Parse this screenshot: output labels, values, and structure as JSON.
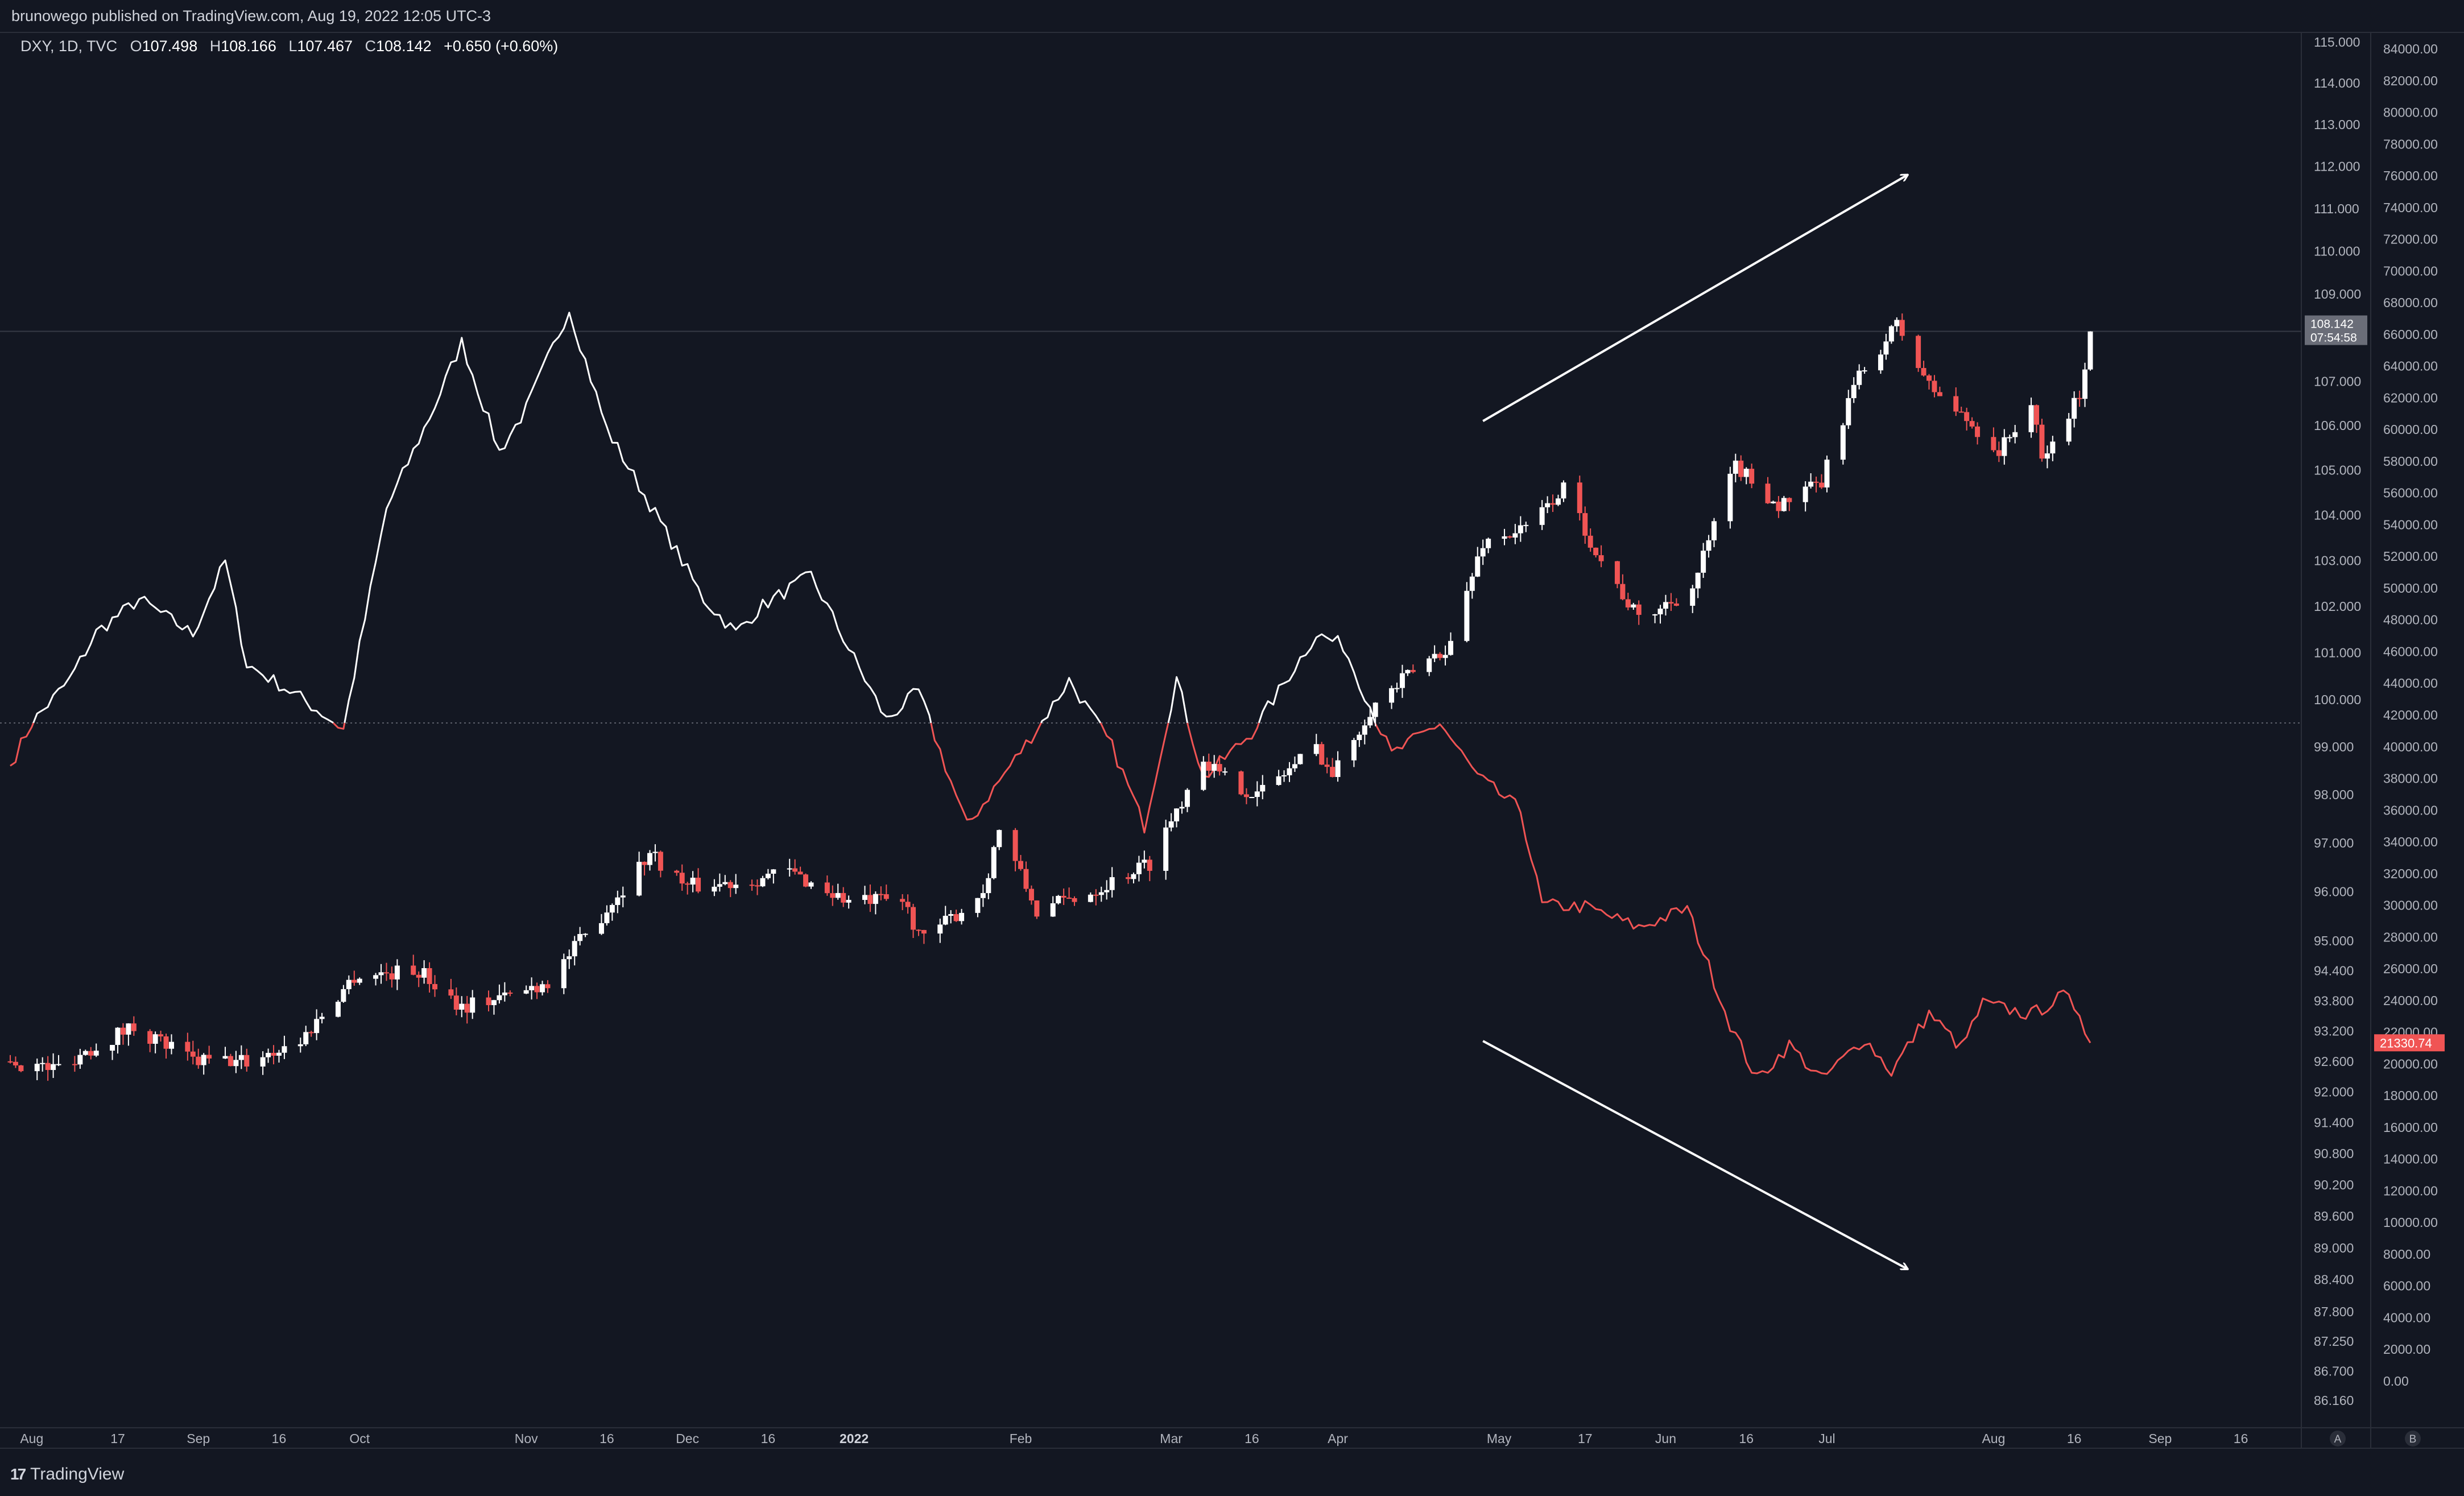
{
  "header": {
    "publish_text": "brunowego published on TradingView.com, Aug 19, 2022 12:05 UTC-3"
  },
  "legend": {
    "symbol": "DXY, 1D, TVC",
    "open_label": "O",
    "open": "107.498",
    "high_label": "H",
    "high": "108.166",
    "low_label": "L",
    "low": "107.467",
    "close_label": "C",
    "close": "108.142",
    "change": "+0.650 (+0.60%)"
  },
  "footer": {
    "brand": "TradingView"
  },
  "colors": {
    "background": "#131722",
    "up": "#ffffff",
    "down": "#f05454",
    "btc_above": "#ffffff",
    "btc_below": "#f05454",
    "grid": "#2a2e39",
    "axis_text": "#b2b5be"
  },
  "chart_data": {
    "type": "candlestick",
    "series_primary": "DXY, 1D, TVC",
    "last_price_label": "108.142",
    "countdown_label": "07:54:58",
    "btc_last_label": "21330.74",
    "x_tick_labels": [
      "Aug",
      "17",
      "Sep",
      "16",
      "Oct",
      "Nov",
      "16",
      "Dec",
      "16",
      "2022",
      "Feb",
      "Mar",
      "16",
      "Apr",
      "May",
      "17",
      "Jun",
      "16",
      "Jul",
      "Aug",
      "16",
      "Sep",
      "16"
    ],
    "x_tick_dates": [
      "2021-08-01",
      "2021-08-17",
      "2021-09-01",
      "2021-09-16",
      "2021-10-01",
      "2021-11-01",
      "2021-11-16",
      "2021-12-01",
      "2021-12-16",
      "2022-01-01",
      "2022-02-01",
      "2022-03-01",
      "2022-03-16",
      "2022-04-01",
      "2022-05-01",
      "2022-05-17",
      "2022-06-01",
      "2022-06-16",
      "2022-07-01",
      "2022-08-01",
      "2022-08-16",
      "2022-09-01",
      "2022-09-16"
    ],
    "left_axis_labels": [
      "115.000",
      "114.000",
      "113.000",
      "112.000",
      "111.000",
      "110.000",
      "109.000",
      "107.000",
      "106.000",
      "105.000",
      "104.000",
      "103.000",
      "102.000",
      "101.000",
      "100.000",
      "99.000",
      "98.000",
      "97.000",
      "96.000",
      "95.000",
      "94.400",
      "93.800",
      "93.200",
      "92.600",
      "92.000",
      "91.400",
      "90.800",
      "90.200",
      "89.600",
      "89.000",
      "88.400",
      "87.800",
      "87.250",
      "86.700",
      "86.160"
    ],
    "right_axis_labels": [
      "84000.00",
      "82000.00",
      "80000.00",
      "78000.00",
      "76000.00",
      "74000.00",
      "72000.00",
      "70000.00",
      "68000.00",
      "66000.00",
      "64000.00",
      "62000.00",
      "60000.00",
      "58000.00",
      "56000.00",
      "54000.00",
      "52000.00",
      "50000.00",
      "48000.00",
      "46000.00",
      "44000.00",
      "42000.00",
      "40000.00",
      "38000.00",
      "36000.00",
      "34000.00",
      "32000.00",
      "30000.00",
      "28000.00",
      "26000.00",
      "24000.00",
      "22000.00",
      "20000.00",
      "18000.00",
      "16000.00",
      "14000.00",
      "12000.00",
      "10000.00",
      "8000.00",
      "6000.00",
      "4000.00",
      "2000.00",
      "0.00"
    ],
    "axis_buttons": [
      "A",
      "B"
    ],
    "dxy_anchors": [
      [
        "2021-07-28",
        92.6
      ],
      [
        "2021-08-05",
        92.45
      ],
      [
        "2021-08-10",
        92.75
      ],
      [
        "2021-08-20",
        93.3
      ],
      [
        "2021-08-31",
        92.6
      ],
      [
        "2021-09-10",
        92.6
      ],
      [
        "2021-09-20",
        93.0
      ],
      [
        "2021-09-30",
        94.3
      ],
      [
        "2021-10-12",
        94.4
      ],
      [
        "2021-10-20",
        93.7
      ],
      [
        "2021-10-29",
        93.9
      ],
      [
        "2021-11-05",
        94.2
      ],
      [
        "2021-11-12",
        95.1
      ],
      [
        "2021-11-24",
        96.8
      ],
      [
        "2021-12-01",
        96.1
      ],
      [
        "2021-12-10",
        96.2
      ],
      [
        "2021-12-20",
        96.4
      ],
      [
        "2021-12-31",
        95.8
      ],
      [
        "2022-01-10",
        95.8
      ],
      [
        "2022-01-14",
        95.0
      ],
      [
        "2022-01-25",
        96.0
      ],
      [
        "2022-01-28",
        97.3
      ],
      [
        "2022-02-04",
        95.6
      ],
      [
        "2022-02-14",
        96.0
      ],
      [
        "2022-02-25",
        96.6
      ],
      [
        "2022-03-07",
        98.8
      ],
      [
        "2022-03-10",
        98.4
      ],
      [
        "2022-03-17",
        98.0
      ],
      [
        "2022-03-28",
        99.0
      ],
      [
        "2022-03-31",
        98.4
      ],
      [
        "2022-04-07",
        99.8
      ],
      [
        "2022-04-14",
        100.5
      ],
      [
        "2022-04-22",
        101.2
      ],
      [
        "2022-04-28",
        103.4
      ],
      [
        "2022-05-06",
        103.7
      ],
      [
        "2022-05-13",
        104.6
      ],
      [
        "2022-05-20",
        103.0
      ],
      [
        "2022-05-27",
        101.7
      ],
      [
        "2022-06-06",
        102.4
      ],
      [
        "2022-06-14",
        105.1
      ],
      [
        "2022-06-22",
        104.2
      ],
      [
        "2022-06-30",
        104.7
      ],
      [
        "2022-07-06",
        106.9
      ],
      [
        "2022-07-14",
        108.3
      ],
      [
        "2022-07-20",
        106.9
      ],
      [
        "2022-07-28",
        106.0
      ],
      [
        "2022-08-02",
        105.4
      ],
      [
        "2022-08-08",
        106.5
      ],
      [
        "2022-08-10",
        105.2
      ],
      [
        "2022-08-12",
        105.6
      ],
      [
        "2022-08-17",
        106.7
      ],
      [
        "2022-08-19",
        108.14
      ]
    ],
    "btc_anchors": [
      [
        "2021-07-28",
        38800
      ],
      [
        "2021-08-01",
        41500
      ],
      [
        "2021-08-08",
        44200
      ],
      [
        "2021-08-13",
        47200
      ],
      [
        "2021-08-21",
        49300
      ],
      [
        "2021-08-31",
        47100
      ],
      [
        "2021-09-06",
        51700
      ],
      [
        "2021-09-10",
        45200
      ],
      [
        "2021-09-20",
        43100
      ],
      [
        "2021-09-28",
        41100
      ],
      [
        "2021-10-06",
        55000
      ],
      [
        "2021-10-15",
        61500
      ],
      [
        "2021-10-20",
        65500
      ],
      [
        "2021-10-27",
        58600
      ],
      [
        "2021-11-01",
        61300
      ],
      [
        "2021-11-09",
        67600
      ],
      [
        "2021-11-16",
        60000
      ],
      [
        "2021-11-26",
        54100
      ],
      [
        "2021-12-04",
        49300
      ],
      [
        "2021-12-10",
        47200
      ],
      [
        "2021-12-15",
        48900
      ],
      [
        "2021-12-24",
        50800
      ],
      [
        "2021-12-31",
        46200
      ],
      [
        "2022-01-07",
        41700
      ],
      [
        "2022-01-13",
        43500
      ],
      [
        "2022-01-22",
        35000
      ],
      [
        "2022-02-05",
        41600
      ],
      [
        "2022-02-10",
        44200
      ],
      [
        "2022-02-18",
        40000
      ],
      [
        "2022-02-24",
        35000
      ],
      [
        "2022-03-02",
        44300
      ],
      [
        "2022-03-07",
        38000
      ],
      [
        "2022-03-16",
        40900
      ],
      [
        "2022-03-28",
        47100
      ],
      [
        "2022-04-02",
        46400
      ],
      [
        "2022-04-11",
        39500
      ],
      [
        "2022-04-20",
        41500
      ],
      [
        "2022-04-27",
        38100
      ],
      [
        "2022-05-05",
        36000
      ],
      [
        "2022-05-09",
        30000
      ],
      [
        "2022-05-17",
        29900
      ],
      [
        "2022-05-27",
        28600
      ],
      [
        "2022-06-05",
        29800
      ],
      [
        "2022-06-13",
        22500
      ],
      [
        "2022-06-18",
        19000
      ],
      [
        "2022-06-24",
        21200
      ],
      [
        "2022-06-30",
        19000
      ],
      [
        "2022-07-08",
        21600
      ],
      [
        "2022-07-13",
        19500
      ],
      [
        "2022-07-20",
        23200
      ],
      [
        "2022-07-26",
        21000
      ],
      [
        "2022-07-30",
        23800
      ],
      [
        "2022-08-08",
        23100
      ],
      [
        "2022-08-14",
        24300
      ],
      [
        "2022-08-17",
        23300
      ],
      [
        "2022-08-19",
        21330
      ]
    ],
    "annotations": [
      {
        "type": "arrow",
        "direction": "up",
        "from": [
          "2022-04-28",
          106.1
        ],
        "to": [
          "2022-07-16",
          111.8
        ]
      },
      {
        "type": "arrow",
        "direction": "down",
        "from": [
          "2022-04-28",
          93.0
        ],
        "to": [
          "2022-07-16",
          88.6
        ]
      }
    ],
    "dashed_baseline_btc": 41500,
    "last_price_line": 108.142
  }
}
